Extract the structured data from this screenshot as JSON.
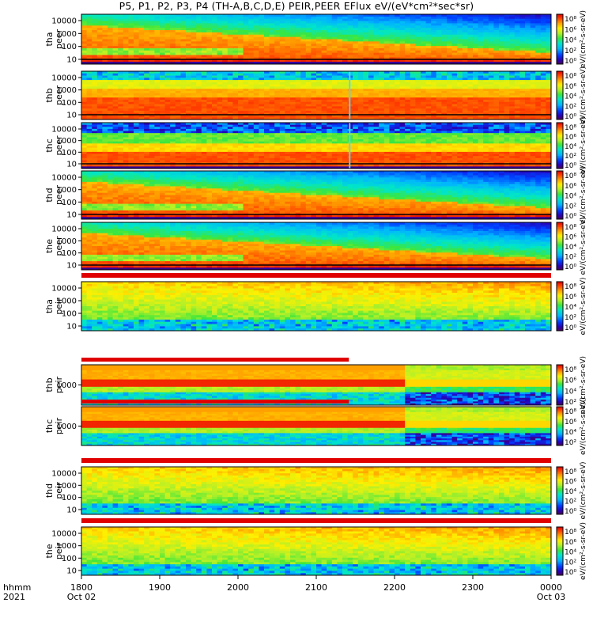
{
  "title": "P5, P1, P2, P3, P4 (TH-A,B,C,D,E) PEIR,PEER EFlux eV/(eV*cm²*sec*sr)",
  "colorbar_unit": "eV/(cm²-s-sr-eV)",
  "colorbar_unit_alt": "[eV/(cm^2-s-sr-eV)]",
  "time_label": {
    "line1": "hhmm",
    "line2": "2021"
  },
  "chart_data": {
    "type": "heatmap",
    "x_ticks": [
      {
        "label": "1800",
        "sub": "Oct 02"
      },
      {
        "label": "1900",
        "sub": ""
      },
      {
        "label": "2000",
        "sub": ""
      },
      {
        "label": "2100",
        "sub": ""
      },
      {
        "label": "2200",
        "sub": ""
      },
      {
        "label": "2300",
        "sub": ""
      },
      {
        "label": "0000",
        "sub": "Oct 03"
      }
    ],
    "xlim": [
      "2021-10-02 18:00",
      "2021-10-03 00:00"
    ],
    "zscale": "log",
    "colorbar_ticks": [
      "10⁸",
      "10⁶",
      "10⁴",
      "10²",
      "10⁰"
    ],
    "panels": [
      {
        "probe": "tha",
        "species": "peer",
        "y_ticks": [
          "10000",
          "1000",
          "100",
          "10"
        ],
        "yscale": "log",
        "pattern": "peer_declining"
      },
      {
        "probe": "thb",
        "species": "peer",
        "y_ticks": [
          "10000",
          "1000",
          "100",
          "10"
        ],
        "yscale": "log",
        "pattern": "peer_flat",
        "gap_at": "2205"
      },
      {
        "probe": "thc",
        "species": "peer",
        "y_ticks": [
          "10000",
          "1000",
          "100",
          "10"
        ],
        "yscale": "log",
        "pattern": "peer_flat_low",
        "gap_at": "2205"
      },
      {
        "probe": "thd",
        "species": "peer",
        "y_ticks": [
          "10000",
          "1000",
          "100",
          "10"
        ],
        "yscale": "log",
        "pattern": "peer_declining"
      },
      {
        "probe": "the",
        "species": "peer",
        "y_ticks": [
          "10000",
          "1000",
          "100",
          "10"
        ],
        "yscale": "log",
        "pattern": "peer_declining"
      },
      {
        "probe": "tha",
        "species": "peir",
        "y_ticks": [
          "10000",
          "1000",
          "100",
          "10"
        ],
        "yscale": "log",
        "pattern": "peir_green"
      },
      {
        "probe": "thb",
        "species": "peir",
        "y_ticks": [
          "1000"
        ],
        "yscale": "log",
        "pattern": "peir_banded",
        "change_at": "2205"
      },
      {
        "probe": "thc",
        "species": "peir",
        "y_ticks": [
          "1000"
        ],
        "yscale": "log",
        "pattern": "peir_banded",
        "change_at": "2205"
      },
      {
        "probe": "thd",
        "species": "peir",
        "y_ticks": [
          "10000",
          "1000",
          "100",
          "10"
        ],
        "yscale": "log",
        "pattern": "peir_green"
      },
      {
        "probe": "the",
        "species": "peir",
        "y_ticks": [
          "10000",
          "1000",
          "100",
          "10"
        ],
        "yscale": "log",
        "pattern": "peir_green"
      }
    ]
  }
}
